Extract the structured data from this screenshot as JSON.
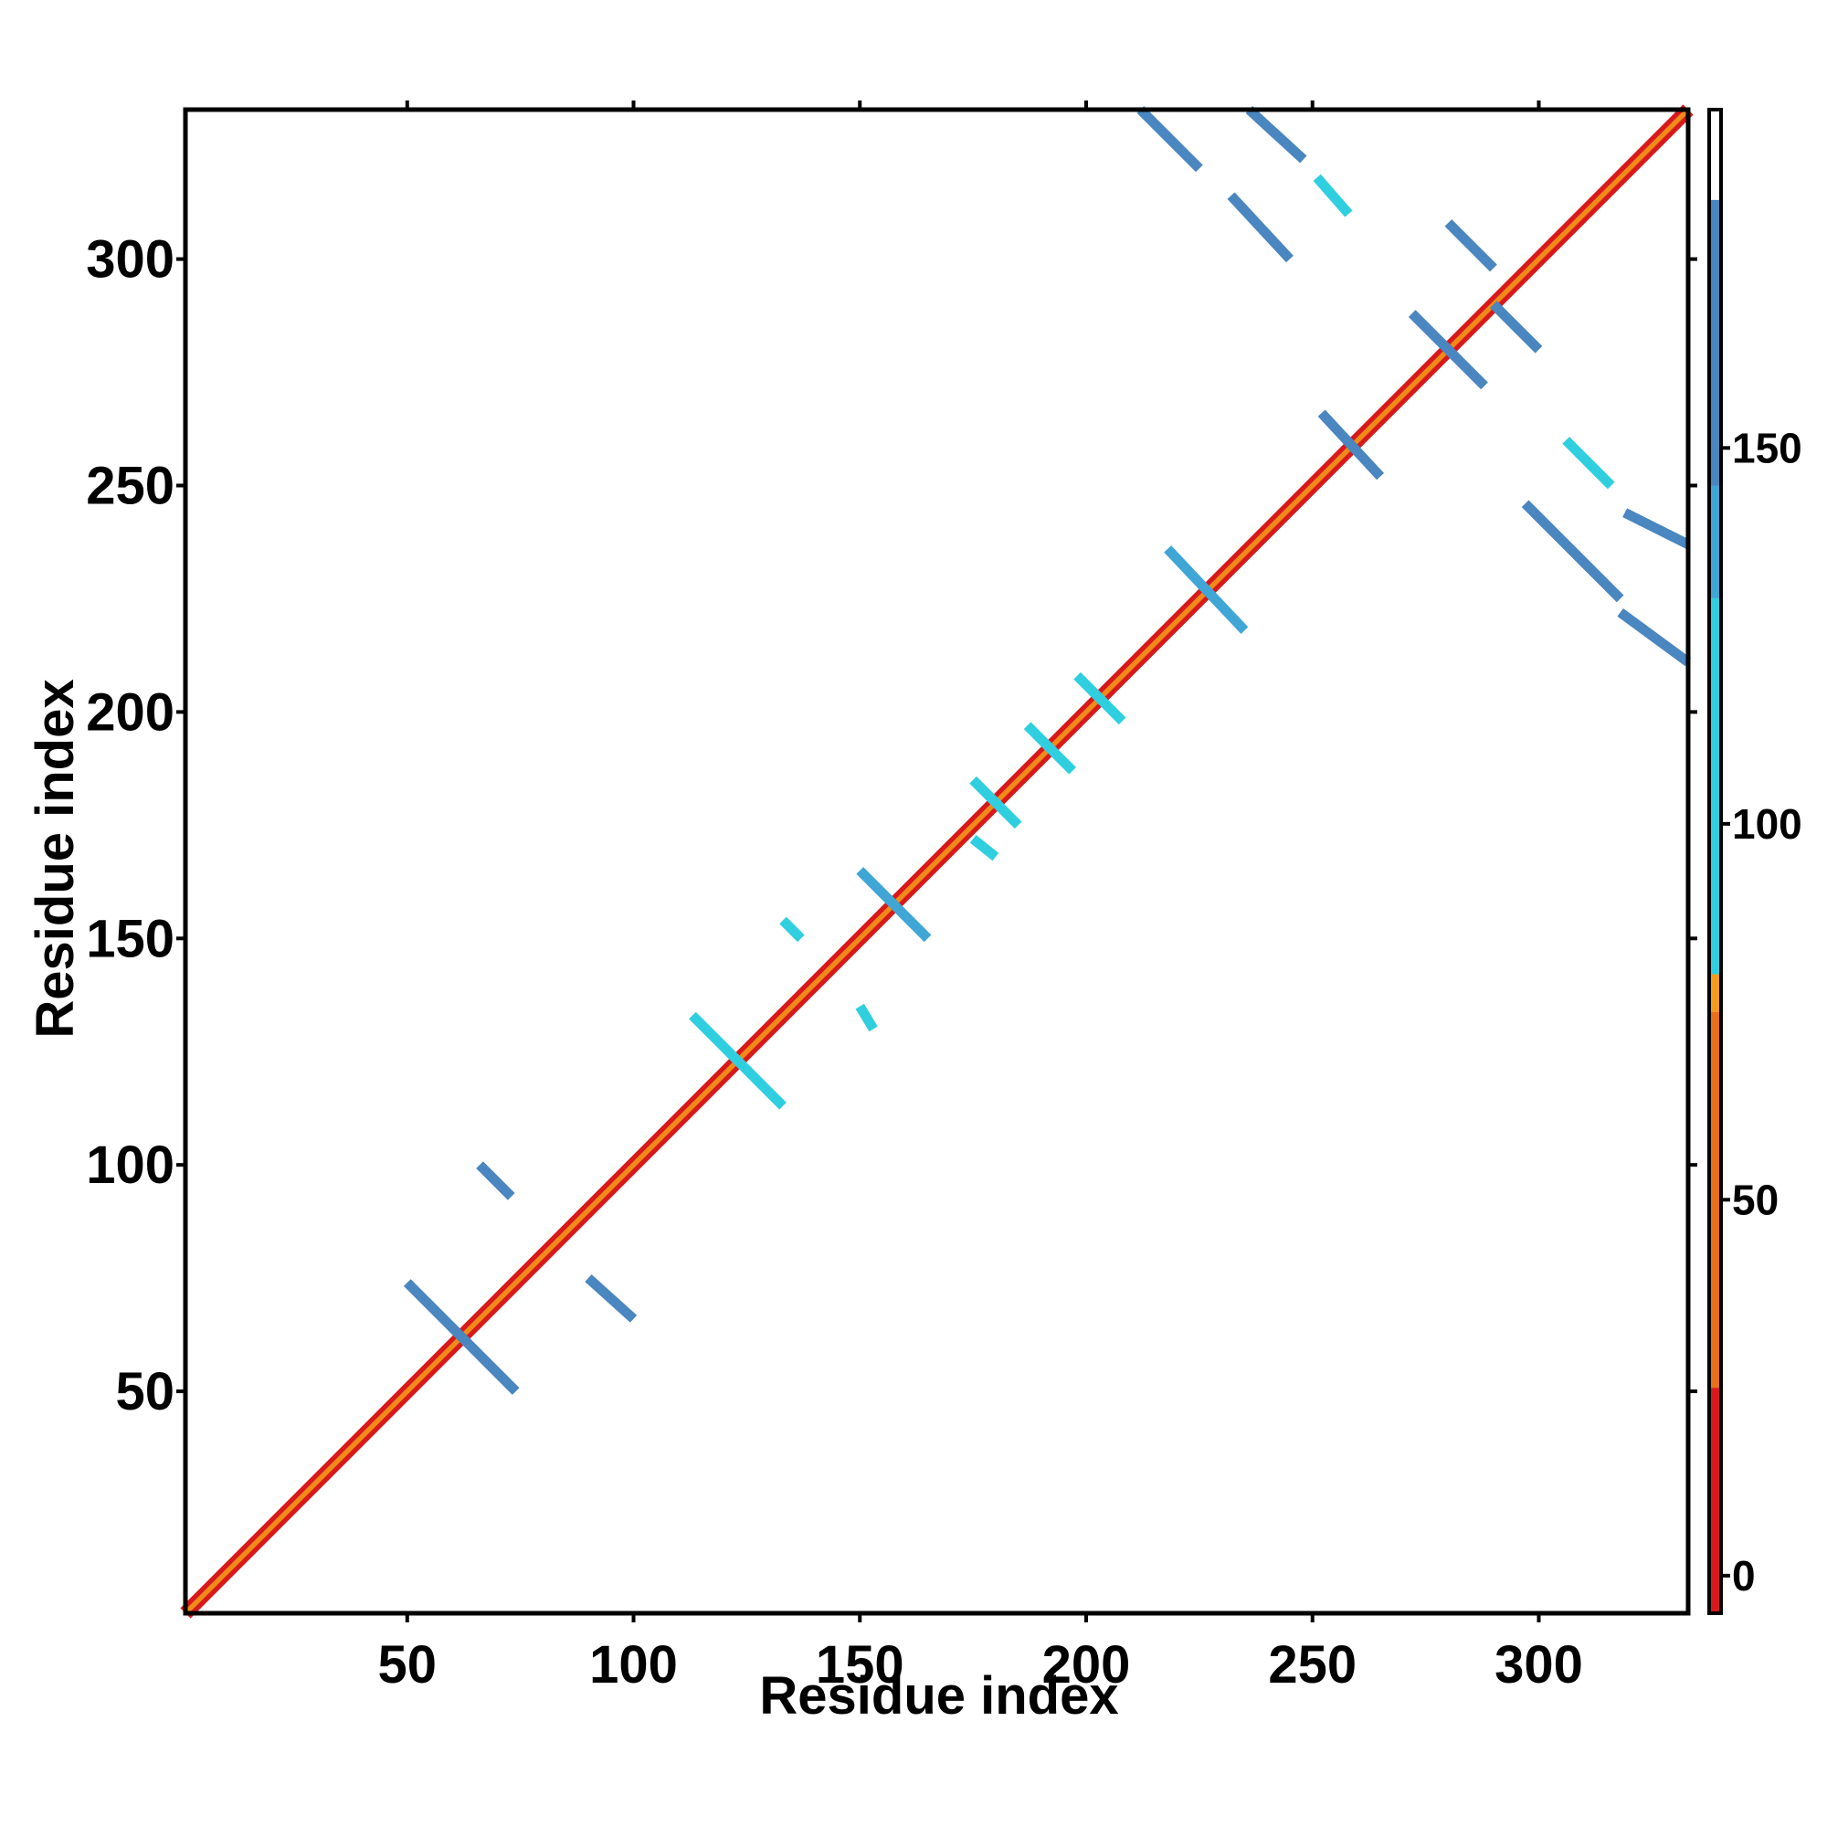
{
  "chart_data": {
    "type": "heatmap",
    "title": "",
    "xlabel": "Residue index",
    "ylabel": "Residue index",
    "xlim": [
      1,
      333
    ],
    "ylim": [
      1,
      333
    ],
    "x_ticks": [
      50,
      100,
      150,
      200,
      250,
      300
    ],
    "y_ticks": [
      50,
      100,
      150,
      200,
      250,
      300
    ],
    "x_tick_labels": [
      "50",
      "100",
      "150",
      "200",
      "250",
      "300"
    ],
    "y_tick_labels": [
      "50",
      "100",
      "150",
      "200",
      "250",
      "300"
    ],
    "grid": false,
    "colorbar": {
      "range": [
        -5,
        195
      ],
      "ticks": [
        0,
        50,
        100,
        150
      ],
      "tick_labels": [
        "0",
        "50",
        "100",
        "150"
      ],
      "bands": [
        {
          "from": -5,
          "to": 25,
          "color": "#d7191c"
        },
        {
          "from": 25,
          "to": 75,
          "color": "#e8701a"
        },
        {
          "from": 75,
          "to": 80,
          "color": "#f49b1c"
        },
        {
          "from": 80,
          "to": 130,
          "color": "#2fcfe0"
        },
        {
          "from": 130,
          "to": 145,
          "color": "#3fa6d6"
        },
        {
          "from": 145,
          "to": 183,
          "color": "#4a86bf"
        },
        {
          "from": 183,
          "to": 195,
          "color": "#ffffff"
        }
      ]
    },
    "segments": [
      {
        "x": [
          1,
          333
        ],
        "y": [
          1,
          333
        ],
        "value": 10,
        "note": "diagonal"
      },
      {
        "x": [
          50,
          74
        ],
        "y": [
          74,
          50
        ],
        "value": 150
      },
      {
        "x": [
          66,
          73
        ],
        "y": [
          100,
          93
        ],
        "value": 150
      },
      {
        "x": [
          90,
          100
        ],
        "y": [
          75,
          66
        ],
        "value": 150
      },
      {
        "x": [
          113,
          133
        ],
        "y": [
          133,
          113
        ],
        "value": 110
      },
      {
        "x": [
          133,
          137
        ],
        "y": [
          154,
          150
        ],
        "value": 110
      },
      {
        "x": [
          150,
          153
        ],
        "y": [
          135,
          130
        ],
        "value": 110
      },
      {
        "x": [
          150,
          165
        ],
        "y": [
          165,
          150
        ],
        "value": 140
      },
      {
        "x": [
          175,
          185
        ],
        "y": [
          185,
          175
        ],
        "value": 110
      },
      {
        "x": [
          187,
          197
        ],
        "y": [
          197,
          187
        ],
        "value": 110
      },
      {
        "x": [
          175,
          180
        ],
        "y": [
          172,
          168
        ],
        "value": 110
      },
      {
        "x": [
          198,
          208
        ],
        "y": [
          208,
          198
        ],
        "value": 110
      },
      {
        "x": [
          218,
          235
        ],
        "y": [
          236,
          218
        ],
        "value": 140
      },
      {
        "x": [
          252,
          265
        ],
        "y": [
          266,
          252
        ],
        "value": 150
      },
      {
        "x": [
          272,
          288
        ],
        "y": [
          288,
          272
        ],
        "value": 150
      },
      {
        "x": [
          280,
          290
        ],
        "y": [
          308,
          298
        ],
        "value": 160
      },
      {
        "x": [
          290,
          300
        ],
        "y": [
          290,
          280
        ],
        "value": 150
      },
      {
        "x": [
          212,
          225
        ],
        "y": [
          333,
          320
        ],
        "value": 150
      },
      {
        "x": [
          232,
          245
        ],
        "y": [
          314,
          300
        ],
        "value": 150
      },
      {
        "x": [
          236,
          248
        ],
        "y": [
          333,
          322
        ],
        "value": 150
      },
      {
        "x": [
          251,
          258
        ],
        "y": [
          318,
          310
        ],
        "value": 110
      },
      {
        "x": [
          297,
          318
        ],
        "y": [
          246,
          225
        ],
        "value": 150
      },
      {
        "x": [
          306,
          316
        ],
        "y": [
          260,
          250
        ],
        "value": 110
      },
      {
        "x": [
          319,
          333
        ],
        "y": [
          244,
          237
        ],
        "value": 150
      },
      {
        "x": [
          318,
          333
        ],
        "y": [
          222,
          211
        ],
        "value": 150
      }
    ]
  }
}
